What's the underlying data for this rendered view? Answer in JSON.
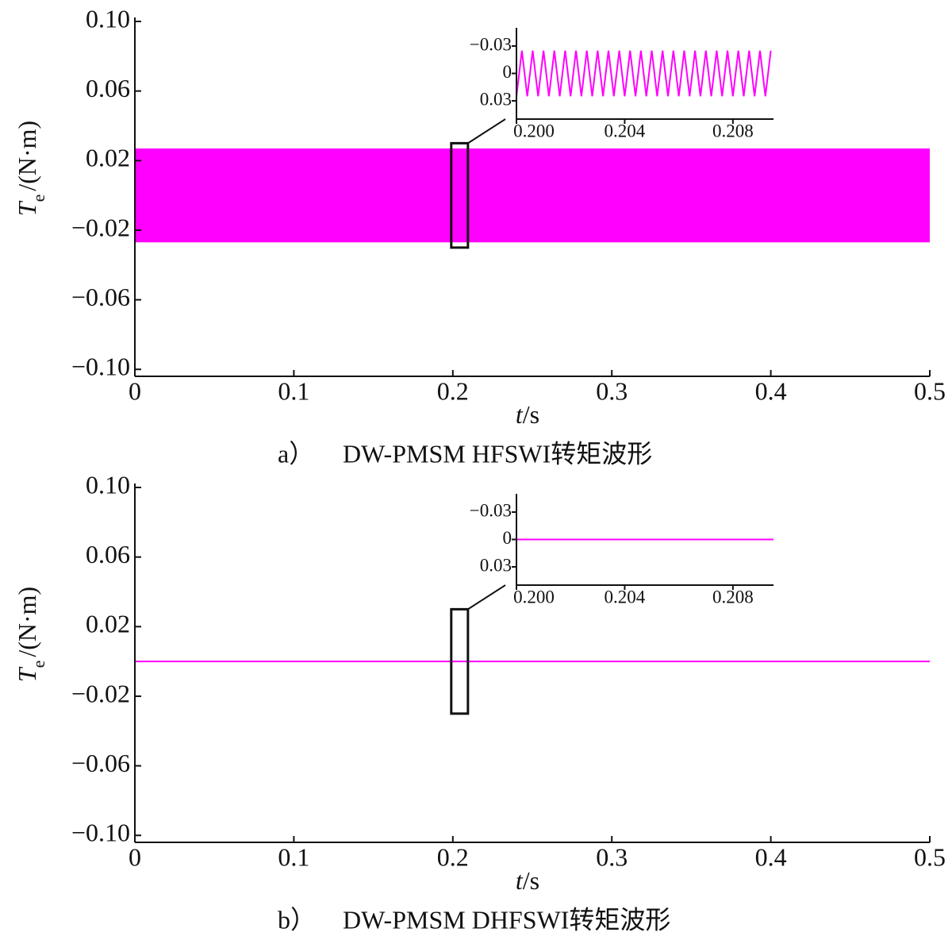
{
  "chart_data": [
    {
      "type": "band",
      "caption_label": "a）",
      "caption_title": "DW-PMSM HFSWI转矩波形",
      "ylabel": {
        "symbol": "T",
        "subscript": "e",
        "unit": "/(N·m)"
      },
      "xlabel": {
        "symbol": "t",
        "unit": "/s"
      },
      "xlim": [
        0,
        0.5
      ],
      "ylim": [
        -0.104,
        0.1
      ],
      "color": "#ff00ff",
      "xticks": [
        0,
        0.1,
        0.2,
        0.3,
        0.4,
        0.5
      ],
      "yticks": [
        {
          "value": 0.1,
          "label": "0.10"
        },
        0.06,
        0.02,
        {
          "value": -0.02,
          "label": "−0.02"
        },
        {
          "value": -0.06,
          "label": "−0.06"
        },
        {
          "value": -0.1,
          "label": "−0.10"
        }
      ],
      "x": [
        0,
        0.5
      ],
      "upper": [
        0.027,
        0.027
      ],
      "lower": [
        -0.027,
        -0.027
      ],
      "zoom_box": {
        "x": [
          0.199,
          0.2095
        ],
        "y": [
          -0.03,
          0.03
        ]
      },
      "inset": {
        "type": "line",
        "xlim": [
          0.2,
          0.2095
        ],
        "ylim": [
          0.05,
          -0.05
        ],
        "color": "#ff00ff",
        "xticks": [
          {
            "value": 0.2,
            "label": "0.200"
          },
          0.204,
          0.208
        ],
        "yticks": [
          {
            "value": -0.03,
            "label": "−0.03"
          },
          0,
          0.03
        ],
        "x": [
          0.2,
          0.2002,
          0.2004,
          0.2006,
          0.2008,
          0.201,
          0.2012,
          0.2014,
          0.2016,
          0.2018,
          0.202,
          0.2022,
          0.2024,
          0.2026,
          0.2028,
          0.203,
          0.2032,
          0.2034,
          0.2036,
          0.2038,
          0.204,
          0.2042,
          0.2044,
          0.2046,
          0.2048,
          0.205,
          0.2052,
          0.2054,
          0.2056,
          0.2058,
          0.206,
          0.2062,
          0.2064,
          0.2066,
          0.2068,
          0.207,
          0.2072,
          0.2074,
          0.2076,
          0.2078,
          0.208,
          0.2082,
          0.2084,
          0.2086,
          0.2088,
          0.209,
          0.2092,
          0.2094
        ],
        "values": [
          0.025,
          -0.025,
          0.025,
          -0.025,
          0.025,
          -0.025,
          0.025,
          -0.025,
          0.025,
          -0.025,
          0.025,
          -0.025,
          0.025,
          -0.025,
          0.025,
          -0.025,
          0.025,
          -0.025,
          0.025,
          -0.025,
          0.025,
          -0.025,
          0.025,
          -0.025,
          0.025,
          -0.025,
          0.025,
          -0.025,
          0.025,
          -0.025,
          0.025,
          -0.025,
          0.025,
          -0.025,
          0.025,
          -0.025,
          0.025,
          -0.025,
          0.025,
          -0.025,
          0.025,
          -0.025,
          0.025,
          -0.025,
          0.025,
          -0.025,
          0.025,
          -0.025
        ]
      }
    },
    {
      "type": "line",
      "caption_label": "b）",
      "caption_title": "DW-PMSM DHFSWI转矩波形",
      "ylabel": {
        "symbol": "T",
        "subscript": "e",
        "unit": "/(N·m)"
      },
      "xlabel": {
        "symbol": "t",
        "unit": "/s"
      },
      "xlim": [
        0,
        0.5
      ],
      "ylim": [
        -0.104,
        0.1
      ],
      "color": "#ff00ff",
      "xticks": [
        0,
        0.1,
        0.2,
        0.3,
        0.4,
        0.5
      ],
      "yticks": [
        {
          "value": 0.1,
          "label": "0.10"
        },
        0.06,
        0.02,
        {
          "value": -0.02,
          "label": "−0.02"
        },
        {
          "value": -0.06,
          "label": "−0.06"
        },
        {
          "value": -0.1,
          "label": "−0.10"
        }
      ],
      "x": [
        0,
        0.5
      ],
      "values": [
        0,
        0
      ],
      "zoom_box": {
        "x": [
          0.199,
          0.2095
        ],
        "y": [
          -0.03,
          0.03
        ]
      },
      "inset": {
        "type": "line",
        "xlim": [
          0.2,
          0.2095
        ],
        "ylim": [
          0.05,
          -0.05
        ],
        "color": "#ff00ff",
        "xticks": [
          {
            "value": 0.2,
            "label": "0.200"
          },
          0.204,
          0.208
        ],
        "yticks": [
          {
            "value": -0.03,
            "label": "−0.03"
          },
          0,
          0.03
        ],
        "x": [
          0.2,
          0.2095
        ],
        "values": [
          0,
          0
        ]
      }
    }
  ]
}
